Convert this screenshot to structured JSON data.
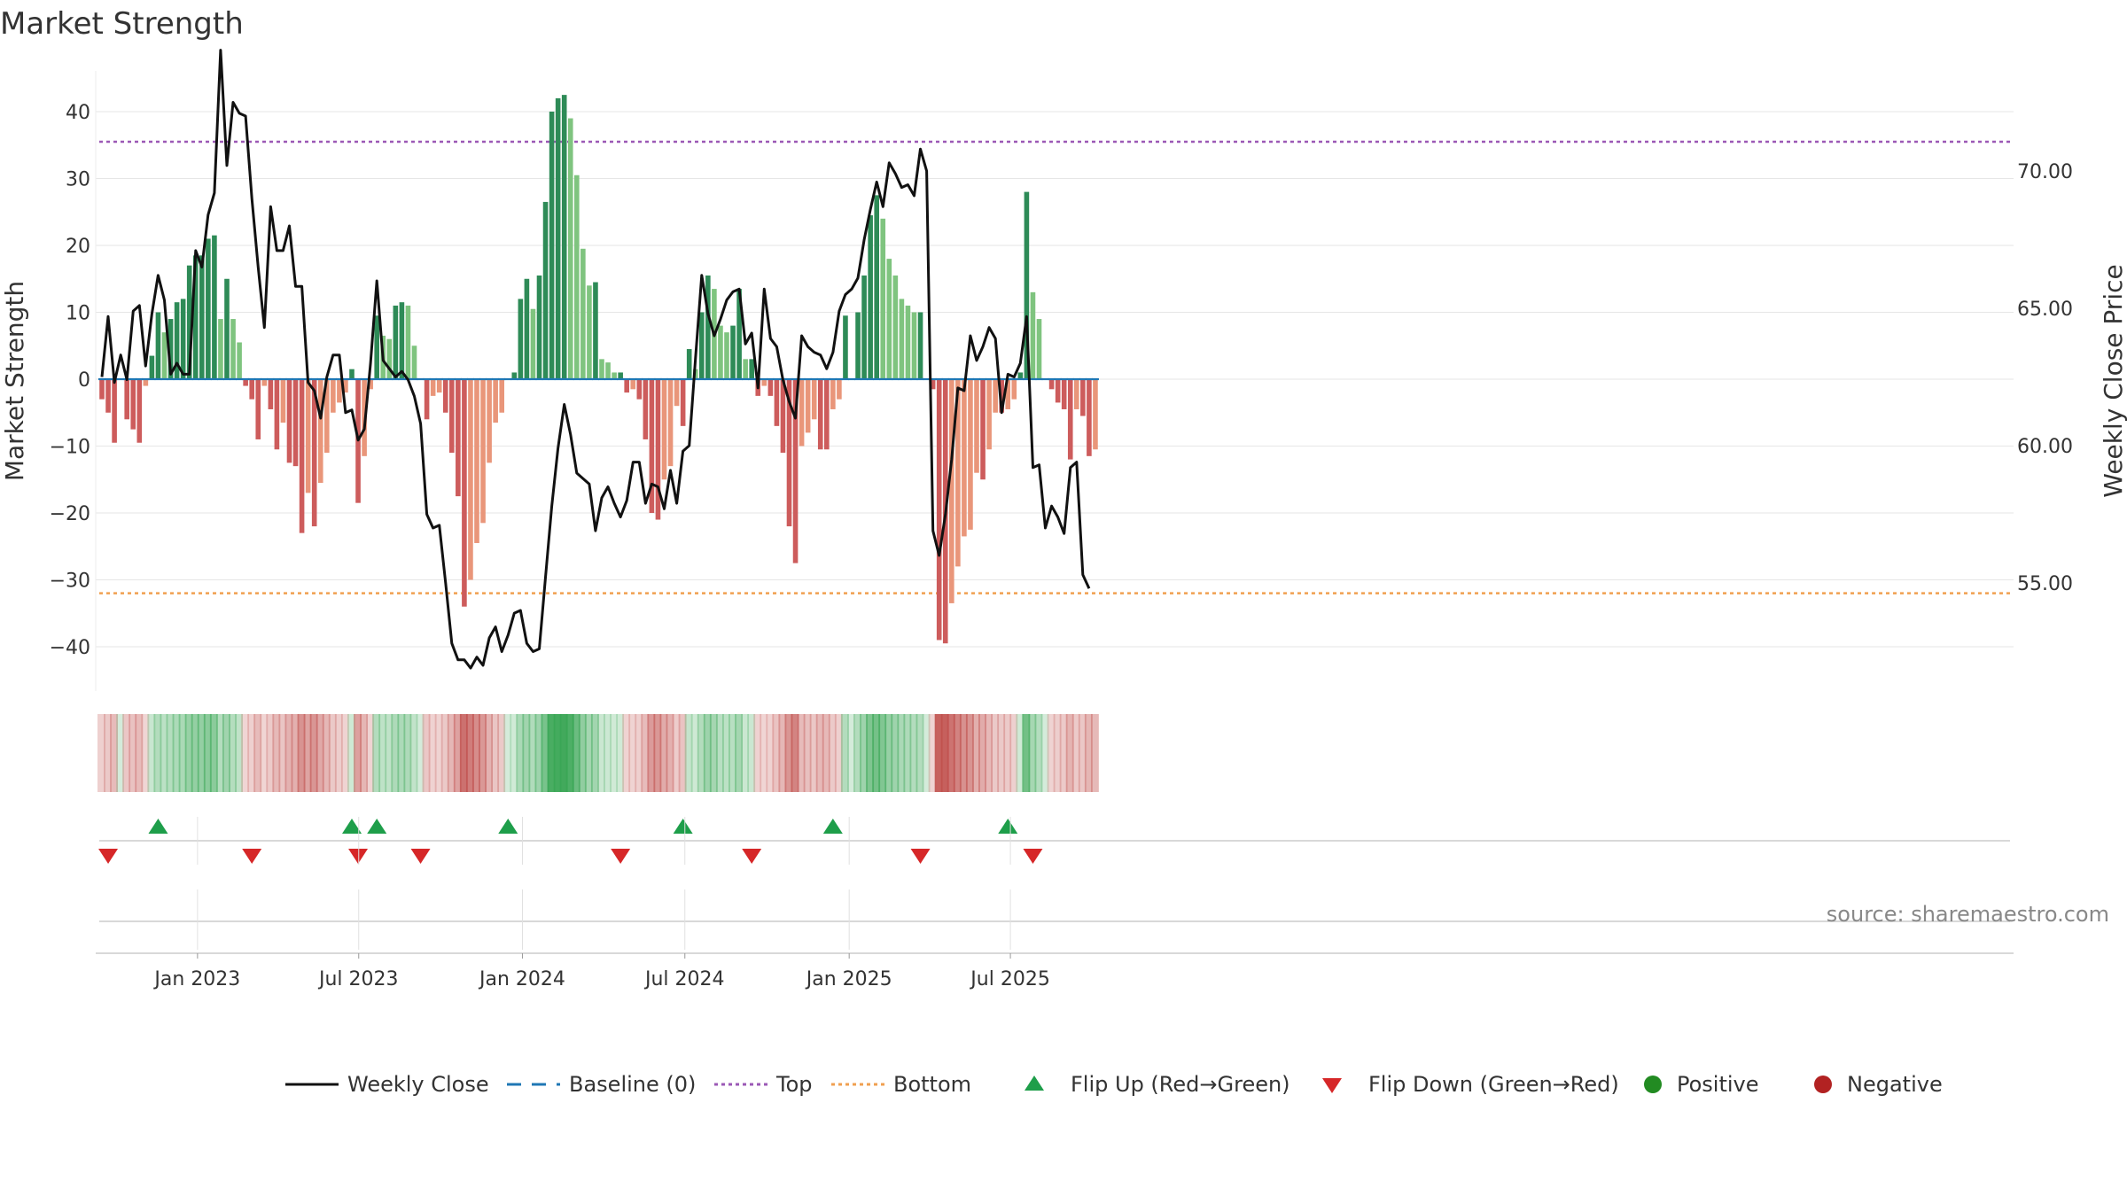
{
  "chart_data": {
    "type": "bar+line",
    "title": "Market Strength",
    "ylabel_left": "Market Strength",
    "ylabel_right": "Weekly Close Price",
    "ylim_left": [
      -46,
      46
    ],
    "ylim_right": [
      51.5,
      73.5
    ],
    "yticks_left": [
      40,
      30,
      20,
      10,
      0,
      -10,
      -20,
      -30,
      -40
    ],
    "yticks_left_labels": [
      "40",
      "30",
      "20",
      "10",
      "0",
      "−10",
      "−20",
      "−30",
      "−40"
    ],
    "yticks_right": [
      70,
      65,
      60,
      55
    ],
    "yticks_right_labels": [
      "70.00",
      "65.00",
      "60.00",
      "55.00"
    ],
    "x_start": "2022-09-05",
    "x_step_days": 7,
    "xticks": [
      {
        "label": "Jan 2023",
        "week": 15.3
      },
      {
        "label": "Jul 2023",
        "week": 41.1
      },
      {
        "label": "Jan 2024",
        "week": 67.3
      },
      {
        "label": "Jul 2024",
        "week": 93.3
      },
      {
        "label": "Jan 2025",
        "week": 119.6
      },
      {
        "label": "Jul 2025",
        "week": 145.4
      }
    ],
    "reference_lines": {
      "top": 35.5,
      "bottom": -32,
      "baseline": 0
    },
    "strength": [
      -3,
      -5,
      -9.5,
      0,
      -6,
      -7.5,
      -9.5,
      -1,
      3.5,
      10,
      7,
      9,
      11.5,
      12,
      17,
      18.5,
      18.5,
      21,
      21.5,
      9,
      15,
      9,
      5.5,
      -1,
      -3,
      -9,
      -1,
      -4.5,
      -10.5,
      -6.5,
      -12.5,
      -13,
      -23,
      -17,
      -22,
      -15.5,
      -11,
      -5,
      -3.5,
      -2,
      1.5,
      -18.5,
      -11.5,
      -1.5,
      9.5,
      6.5,
      6,
      11,
      11.5,
      11,
      5,
      0,
      -6,
      -2.5,
      -2,
      -5,
      -11,
      -17.5,
      -34,
      -30,
      -24.5,
      -21.5,
      -12.5,
      -6.5,
      -5,
      0,
      1,
      12,
      15,
      10.5,
      15.5,
      26.5,
      40,
      42,
      42.5,
      39,
      30.5,
      19.5,
      14,
      14.5,
      3,
      2.5,
      1,
      1,
      -2,
      -1.5,
      -3,
      -9,
      -20,
      -21,
      -15,
      -13,
      -4,
      -7,
      4.5,
      1.5,
      10,
      15.5,
      13.5,
      8,
      7,
      8,
      13.5,
      3,
      3,
      -2.5,
      -1,
      -2.5,
      -7,
      -11,
      -22,
      -27.5,
      -10,
      -8,
      -6,
      -10.5,
      -10.5,
      -4.5,
      -3,
      9.5,
      0,
      10,
      15.5,
      24.5,
      27.5,
      24,
      18,
      15.5,
      12,
      11,
      10,
      10,
      0,
      -1.5,
      -39,
      -39.5,
      -33.5,
      -28,
      -23.5,
      -22.5,
      -14,
      -15,
      -10.5,
      -5,
      -5,
      -4.5,
      -3,
      1,
      28,
      13,
      9,
      0,
      -1.5,
      -3.5,
      -4.5,
      -12,
      -4.5,
      -5.5,
      -11.5,
      -10.5
    ],
    "close": [
      62.5,
      64.7,
      62.3,
      63.3,
      62.4,
      64.9,
      65.1,
      62.9,
      64.8,
      66.2,
      65.3,
      62.6,
      63.0,
      62.6,
      62.6,
      67.1,
      66.5,
      68.4,
      69.2,
      74.4,
      70.2,
      72.5,
      72.1,
      72.0,
      69.0,
      66.5,
      64.3,
      68.7,
      67.1,
      67.1,
      68.0,
      65.8,
      65.8,
      62.3,
      62.0,
      61.0,
      62.5,
      63.3,
      63.3,
      61.2,
      61.3,
      60.2,
      60.6,
      63.0,
      66.0,
      63.1,
      62.8,
      62.5,
      62.7,
      62.4,
      61.8,
      60.8,
      57.5,
      57.0,
      57.1,
      55.0,
      52.8,
      52.2,
      52.2,
      51.9,
      52.3,
      52.0,
      53.0,
      53.4,
      52.5,
      53.1,
      53.9,
      54.0,
      52.8,
      52.5,
      52.6,
      55.2,
      57.8,
      59.9,
      61.5,
      60.4,
      59.0,
      58.8,
      58.6,
      56.9,
      58.1,
      58.5,
      57.9,
      57.4,
      58.0,
      59.4,
      59.4,
      57.9,
      58.6,
      58.5,
      57.7,
      59.1,
      57.9,
      59.8,
      60.0,
      63.2,
      66.2,
      64.8,
      64.0,
      64.6,
      65.3,
      65.6,
      65.7,
      63.7,
      64.1,
      62.1,
      65.7,
      63.9,
      63.6,
      62.4,
      61.6,
      61.0,
      64.0,
      63.6,
      63.4,
      63.3,
      62.8,
      63.4,
      64.9,
      65.5,
      65.7,
      66.1,
      67.5,
      68.6,
      69.6,
      68.7,
      70.3,
      69.9,
      69.4,
      69.5,
      69.1,
      70.8,
      70.0,
      56.9,
      56.0,
      57.5,
      59.5,
      62.1,
      62.0,
      64.0,
      63.1,
      63.6,
      64.3,
      63.9,
      61.2,
      62.6,
      62.5,
      63.0,
      64.7,
      59.2,
      59.3,
      57.0,
      57.8,
      57.4,
      56.8,
      59.2,
      59.4,
      55.3,
      54.8
    ],
    "flip_up_weeks": [
      9,
      40,
      44,
      65,
      93,
      117,
      145
    ],
    "flip_down_weeks": [
      1,
      24,
      41,
      51,
      83,
      104,
      131,
      149
    ],
    "legend": [
      {
        "label": "Weekly Close",
        "kind": "line"
      },
      {
        "label": "Baseline (0)",
        "kind": "dash"
      },
      {
        "label": "Top",
        "kind": "dot"
      },
      {
        "label": "Bottom",
        "kind": "dot"
      },
      {
        "label": "Flip Up (Red→Green)",
        "kind": "up"
      },
      {
        "label": "Flip Down (Green→Red)",
        "kind": "down"
      },
      {
        "label": "Positive",
        "kind": "circle"
      },
      {
        "label": "Negative",
        "kind": "circle"
      }
    ],
    "source": "source: sharemaestro.com"
  },
  "colors": {
    "pos_dark": "#2e8b57",
    "pos_light": "#7fc47f",
    "neg_dark": "#cd5c5c",
    "neg_light": "#e9967a",
    "line": "#111111",
    "baseline": "#1f77b4",
    "top": "#9b59b6",
    "bottom": "#f0a050",
    "flip_up": "#1e9e4a",
    "flip_down": "#d62728",
    "positive": "#228b22",
    "negative": "#b22222",
    "grid": "#e6e6e6"
  }
}
